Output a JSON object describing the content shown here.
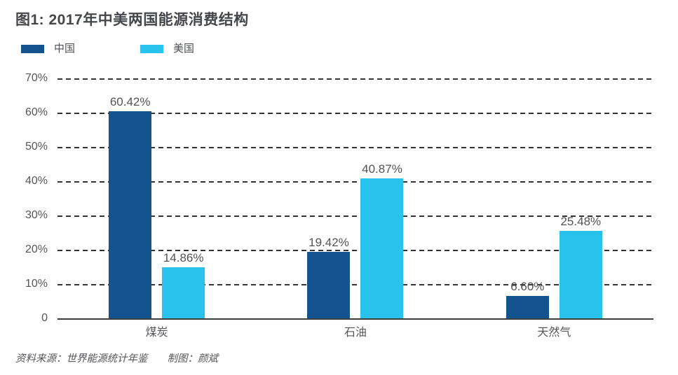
{
  "title": "图1: 2017年中美两国能源消费结构",
  "legend": [
    {
      "key": "china",
      "label": "中国",
      "color": "#15538F"
    },
    {
      "key": "us",
      "label": "美国",
      "color": "#29C2EC"
    }
  ],
  "chart_data": {
    "type": "bar",
    "title": "图1: 2017年中美两国能源消费结构",
    "categories": [
      "煤炭",
      "石油",
      "天然气"
    ],
    "category_keys": [
      "coal",
      "oil",
      "gas"
    ],
    "series": [
      {
        "key": "china",
        "name": "中国",
        "color": "#15538F",
        "values": [
          60.42,
          19.42,
          6.6
        ],
        "labels": [
          "60.42%",
          "19.42%",
          "6.60%"
        ]
      },
      {
        "key": "us",
        "name": "美国",
        "color": "#29C2EC",
        "values": [
          14.86,
          40.87,
          25.48
        ],
        "labels": [
          "14.86%",
          "40.87%",
          "25.48%"
        ]
      }
    ],
    "xlabel": "",
    "ylabel": "",
    "ylim": [
      0,
      70
    ],
    "ytick_labels": [
      "70%",
      "60%",
      "50%",
      "40%",
      "30%",
      "20%",
      "10%",
      "0"
    ],
    "grid": "dashed-horizontal",
    "legend_position": "top-left",
    "baseline": "solid"
  },
  "footer": {
    "source": "资料来源：世界能源统计年鉴",
    "credit": "制图：颜斌"
  }
}
